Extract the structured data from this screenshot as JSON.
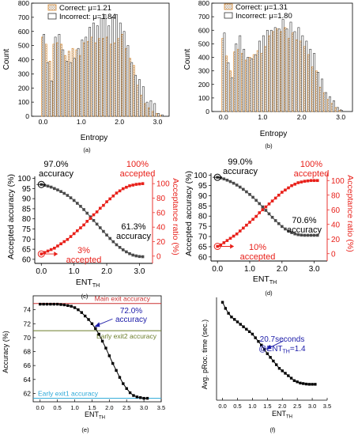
{
  "panel_labels": [
    "(a)",
    "(b)",
    "(c)",
    "(d)",
    "(e)",
    "(f)"
  ],
  "colors": {
    "correct_edge": "#d98a30",
    "accuracy_curve": "#4a4a4a",
    "acceptance_curve": "#e8201a",
    "main_exit_line": "#cc3333",
    "early_exit2_line": "#6b7d2a",
    "early_exit1_line": "#2aa8d8",
    "annotation_blue": "#1a1aa8",
    "black": "#000000"
  },
  "chart_data": [
    {
      "id": "a",
      "type": "bar",
      "xlabel": "Entropy",
      "ylabel": "Count",
      "xlim": [
        -0.3,
        3.3
      ],
      "ylim": [
        0,
        800
      ],
      "xticks": [
        "0.0",
        "1.0",
        "2.0",
        "3.0"
      ],
      "xtick_values": [
        0,
        1,
        2,
        3
      ],
      "yticks": [
        "0",
        "100",
        "200",
        "300",
        "400",
        "500",
        "600",
        "700",
        "800"
      ],
      "bin_width": 0.1,
      "legend_position": "top",
      "series": [
        {
          "name": "Correct: μ=1.21",
          "x": [
            0.0,
            0.1,
            0.2,
            0.3,
            0.4,
            0.5,
            0.6,
            0.7,
            0.8,
            0.9,
            1.0,
            1.1,
            1.2,
            1.3,
            1.4,
            1.5,
            1.6,
            1.7,
            1.8,
            1.9,
            2.0,
            2.1,
            2.2,
            2.3,
            2.4,
            2.5,
            2.6,
            2.7,
            2.8,
            2.9,
            3.0,
            3.1
          ],
          "values": [
            560,
            510,
            390,
            510,
            520,
            510,
            430,
            460,
            480,
            470,
            430,
            520,
            530,
            560,
            520,
            550,
            550,
            560,
            510,
            520,
            550,
            580,
            480,
            410,
            360,
            220,
            150,
            90,
            60,
            35,
            20,
            8
          ]
        },
        {
          "name": "Incorrect: μ=1.84",
          "x": [
            0.0,
            0.1,
            0.2,
            0.3,
            0.4,
            0.5,
            0.6,
            0.7,
            0.8,
            0.9,
            1.0,
            1.1,
            1.2,
            1.3,
            1.4,
            1.5,
            1.6,
            1.7,
            1.8,
            1.9,
            2.0,
            2.1,
            2.2,
            2.3,
            2.4,
            2.5,
            2.6,
            2.7,
            2.8,
            2.9,
            3.0,
            3.1
          ],
          "values": [
            580,
            380,
            250,
            560,
            580,
            470,
            390,
            380,
            410,
            480,
            540,
            560,
            630,
            660,
            640,
            690,
            720,
            640,
            700,
            720,
            660,
            600,
            500,
            380,
            290,
            260,
            210,
            100,
            110,
            90,
            20,
            10
          ]
        }
      ]
    },
    {
      "id": "b",
      "type": "bar",
      "xlabel": "Entropy",
      "ylabel": "Count",
      "xlim": [
        -0.3,
        3.3
      ],
      "ylim": [
        0,
        800
      ],
      "xticks": [
        "0.0",
        "1.0",
        "2.0",
        "3.0"
      ],
      "xtick_values": [
        0,
        1,
        2,
        3
      ],
      "yticks": [
        "0",
        "100",
        "200",
        "300",
        "400",
        "500",
        "600",
        "700",
        "800"
      ],
      "bin_width": 0.1,
      "legend_position": "top",
      "series": [
        {
          "name": "Correct: μ=1.31",
          "x": [
            0.0,
            0.1,
            0.2,
            0.3,
            0.4,
            0.5,
            0.6,
            0.7,
            0.8,
            0.9,
            1.0,
            1.1,
            1.2,
            1.3,
            1.4,
            1.5,
            1.6,
            1.7,
            1.8,
            1.9,
            2.0,
            2.1,
            2.2,
            2.3,
            2.4,
            2.5,
            2.6,
            2.7,
            2.8,
            2.9,
            3.0
          ],
          "values": [
            540,
            410,
            300,
            440,
            460,
            430,
            380,
            400,
            420,
            450,
            430,
            480,
            560,
            590,
            610,
            590,
            620,
            540,
            580,
            530,
            520,
            480,
            420,
            330,
            300,
            180,
            140,
            90,
            60,
            30,
            10
          ]
        },
        {
          "name": "Incorrect: μ=1.80",
          "x": [
            0.0,
            0.1,
            0.2,
            0.3,
            0.4,
            0.5,
            0.6,
            0.7,
            0.8,
            0.9,
            1.0,
            1.1,
            1.2,
            1.3,
            1.4,
            1.5,
            1.6,
            1.7,
            1.8,
            1.9,
            2.0,
            2.1,
            2.2,
            2.3,
            2.4,
            2.5,
            2.6,
            2.7,
            2.8,
            2.9,
            3.0
          ],
          "values": [
            580,
            360,
            250,
            500,
            560,
            460,
            400,
            390,
            420,
            520,
            560,
            600,
            600,
            620,
            610,
            680,
            610,
            660,
            590,
            620,
            560,
            520,
            460,
            430,
            290,
            240,
            140,
            110,
            80,
            30,
            10
          ]
        }
      ]
    },
    {
      "id": "c",
      "type": "line",
      "xlabel": "ENT",
      "xlabel_sub": "TH",
      "ylabel": "Accepted accuracy (%)",
      "y2label": "Acceptance ratio (%)",
      "xlim": [
        -0.2,
        3.4
      ],
      "ylim": [
        58,
        101
      ],
      "y2lim": [
        -10,
        110
      ],
      "xticks": [
        "0.0",
        "1.0",
        "2.0",
        "3.0"
      ],
      "xtick_values": [
        0,
        1,
        2,
        3
      ],
      "yticks": [
        "60",
        "65",
        "70",
        "75",
        "80",
        "85",
        "90",
        "95",
        "100"
      ],
      "y2ticks": [
        "0",
        "20",
        "40",
        "60",
        "80",
        "100"
      ],
      "x": [
        0.0,
        0.1,
        0.2,
        0.3,
        0.4,
        0.5,
        0.6,
        0.7,
        0.8,
        0.9,
        1.0,
        1.1,
        1.2,
        1.3,
        1.4,
        1.5,
        1.6,
        1.7,
        1.8,
        1.9,
        2.0,
        2.1,
        2.2,
        2.3,
        2.4,
        2.5,
        2.6,
        2.7,
        2.8,
        2.9,
        3.0,
        3.1
      ],
      "series": [
        {
          "axis": "left",
          "values": [
            97.0,
            96.6,
            96.2,
            95.7,
            95.0,
            94.3,
            93.5,
            92.6,
            91.6,
            90.4,
            89.1,
            87.7,
            86.2,
            84.6,
            82.8,
            81.0,
            79.2,
            77.4,
            75.6,
            73.8,
            72.0,
            70.3,
            68.7,
            67.2,
            65.9,
            64.7,
            63.7,
            62.8,
            62.1,
            61.7,
            61.4,
            61.3
          ]
        },
        {
          "axis": "right",
          "values": [
            3,
            5,
            7,
            9,
            11,
            14,
            17,
            20,
            23,
            27,
            31,
            35,
            39,
            43,
            48,
            52,
            57,
            61,
            66,
            70,
            75,
            79,
            83,
            87,
            90,
            93,
            95,
            97,
            98,
            99,
            99.5,
            100
          ]
        }
      ],
      "annotations": [
        {
          "lines": [
            "97.0%",
            "accuracy"
          ],
          "x": 0.0,
          "y": 97.0,
          "axis": "left"
        },
        {
          "lines": [
            "100%",
            "accepted"
          ],
          "x": 3.1,
          "y": 100,
          "axis": "right"
        },
        {
          "lines": [
            "61.3%",
            "accuracy"
          ],
          "x": 3.1,
          "y": 61.3,
          "axis": "left"
        },
        {
          "lines": [
            "3%",
            "accepted"
          ],
          "x": 0.0,
          "y": 3,
          "axis": "right"
        }
      ]
    },
    {
      "id": "d",
      "type": "line",
      "xlabel": "ENT",
      "xlabel_sub": "TH",
      "ylabel": "Accepted accuracy (%)",
      "y2label": "Acceptance ratio (%)",
      "xlim": [
        -0.2,
        3.4
      ],
      "ylim": [
        58,
        101
      ],
      "y2lim": [
        -10,
        110
      ],
      "xticks": [
        "0.0",
        "1.0",
        "2.0",
        "3.0"
      ],
      "xtick_values": [
        0,
        1,
        2,
        3
      ],
      "yticks": [
        "60",
        "65",
        "70",
        "75",
        "80",
        "85",
        "90",
        "95",
        "100"
      ],
      "y2ticks": [
        "0",
        "20",
        "40",
        "60",
        "80",
        "100"
      ],
      "x": [
        0.0,
        0.1,
        0.2,
        0.3,
        0.4,
        0.5,
        0.6,
        0.7,
        0.8,
        0.9,
        1.0,
        1.1,
        1.2,
        1.3,
        1.4,
        1.5,
        1.6,
        1.7,
        1.8,
        1.9,
        2.0,
        2.1,
        2.2,
        2.3,
        2.4,
        2.5,
        2.6,
        2.7,
        2.8,
        2.9,
        3.0,
        3.1
      ],
      "series": [
        {
          "axis": "left",
          "values": [
            99.0,
            98.7,
            98.2,
            97.6,
            96.9,
            96.1,
            95.2,
            94.2,
            93.1,
            91.9,
            90.6,
            89.2,
            87.7,
            86.1,
            84.5,
            82.8,
            81.1,
            79.4,
            77.8,
            76.3,
            74.9,
            73.7,
            72.7,
            71.9,
            71.3,
            70.9,
            70.7,
            70.6,
            70.6,
            70.6,
            70.6,
            70.6
          ]
        },
        {
          "axis": "right",
          "values": [
            10,
            12,
            15,
            18,
            21,
            24,
            27,
            31,
            35,
            39,
            43,
            47,
            51,
            56,
            60,
            64,
            68,
            72,
            76,
            80,
            84,
            87,
            90,
            93,
            95,
            97,
            98,
            99,
            99.5,
            100,
            100,
            100
          ]
        }
      ],
      "annotations": [
        {
          "lines": [
            "99.0%",
            "accuracy"
          ],
          "x": 0.0,
          "y": 99.0,
          "axis": "left"
        },
        {
          "lines": [
            "100%",
            "accepted"
          ],
          "x": 3.1,
          "y": 100,
          "axis": "right"
        },
        {
          "lines": [
            "70.6%",
            "accuracy"
          ],
          "x": 3.1,
          "y": 70.6,
          "axis": "left"
        },
        {
          "lines": [
            "10%",
            "accepted"
          ],
          "x": 0.0,
          "y": 10,
          "axis": "right"
        }
      ]
    },
    {
      "id": "e",
      "type": "line",
      "xlabel": "ENT",
      "xlabel_sub": "TH",
      "ylabel": "Accuracy (%)",
      "xlim": [
        -0.2,
        3.5
      ],
      "ylim": [
        60.8,
        76
      ],
      "xticks": [
        "0.0",
        "0.5",
        "1.0",
        "1.5",
        "2.0",
        "2.5",
        "3.0",
        "3.5"
      ],
      "xtick_values": [
        0.0,
        0.5,
        1.0,
        1.5,
        2.0,
        2.5,
        3.0,
        3.5
      ],
      "yticks": [
        "62",
        "64",
        "66",
        "68",
        "70",
        "72",
        "74"
      ],
      "x": [
        0.0,
        0.1,
        0.2,
        0.3,
        0.4,
        0.5,
        0.6,
        0.7,
        0.8,
        0.9,
        1.0,
        1.1,
        1.2,
        1.3,
        1.4,
        1.5,
        1.6,
        1.7,
        1.8,
        1.9,
        2.0,
        2.1,
        2.2,
        2.3,
        2.4,
        2.5,
        2.6,
        2.7,
        2.8,
        2.9,
        3.0,
        3.1
      ],
      "series": [
        {
          "values": [
            74.8,
            74.8,
            74.8,
            74.8,
            74.8,
            74.8,
            74.75,
            74.7,
            74.6,
            74.5,
            74.3,
            74.0,
            73.6,
            73.1,
            72.6,
            72.0,
            71.3,
            70.5,
            69.5,
            68.5,
            67.4,
            66.3,
            65.3,
            64.3,
            63.4,
            62.7,
            62.1,
            61.7,
            61.5,
            61.4,
            61.3,
            61.3
          ]
        }
      ],
      "reference_lines": [
        {
          "label": "Main exit accuracy",
          "y": 74.9,
          "color_key": "main_exit_line"
        },
        {
          "label": "Early exit2 accuracy",
          "y": 71.0,
          "color_key": "early_exit2_line"
        },
        {
          "label": "Early exit1 accuracy",
          "y": 61.3,
          "color_key": "early_exit1_line"
        }
      ],
      "annotations": [
        {
          "lines": [
            "72.0%",
            "accuracy"
          ],
          "x": 1.5,
          "y": 72.0
        }
      ]
    },
    {
      "id": "f",
      "type": "line",
      "xlabel": "ENT",
      "xlabel_sub": "TH",
      "ylabel": "Avg. pRoc. time (sec.)",
      "xlim": [
        -0.2,
        3.5
      ],
      "ylim": [
        0,
        42
      ],
      "xticks": [
        "0.0",
        "0.5",
        "1.0",
        "1.5",
        "2.0",
        "2.5",
        "3.0",
        "3.5"
      ],
      "xtick_values": [
        0.0,
        0.5,
        1.0,
        1.5,
        2.0,
        2.5,
        3.0,
        3.5
      ],
      "x": [
        0.0,
        0.1,
        0.2,
        0.3,
        0.4,
        0.5,
        0.6,
        0.7,
        0.8,
        0.9,
        1.0,
        1.1,
        1.2,
        1.3,
        1.4,
        1.5,
        1.6,
        1.7,
        1.8,
        1.9,
        2.0,
        2.1,
        2.2,
        2.3,
        2.4,
        2.5,
        2.6,
        2.7,
        2.8,
        2.9,
        3.0,
        3.1
      ],
      "series": [
        {
          "values": [
            40,
            37.5,
            35.5,
            34,
            33,
            32,
            31,
            30,
            29,
            28,
            27,
            25.5,
            24,
            22.5,
            20.7,
            19,
            17.5,
            16,
            14.5,
            13,
            12,
            11,
            10,
            9,
            8,
            7.5,
            7,
            6.8,
            6.6,
            6.5,
            6.5,
            6.5
          ]
        }
      ],
      "annotations": [
        {
          "lines": [
            "20.7seconds",
            "@ENT",
            "TH",
            "=1.4"
          ],
          "x": 1.4,
          "y": 20.7
        }
      ]
    }
  ]
}
